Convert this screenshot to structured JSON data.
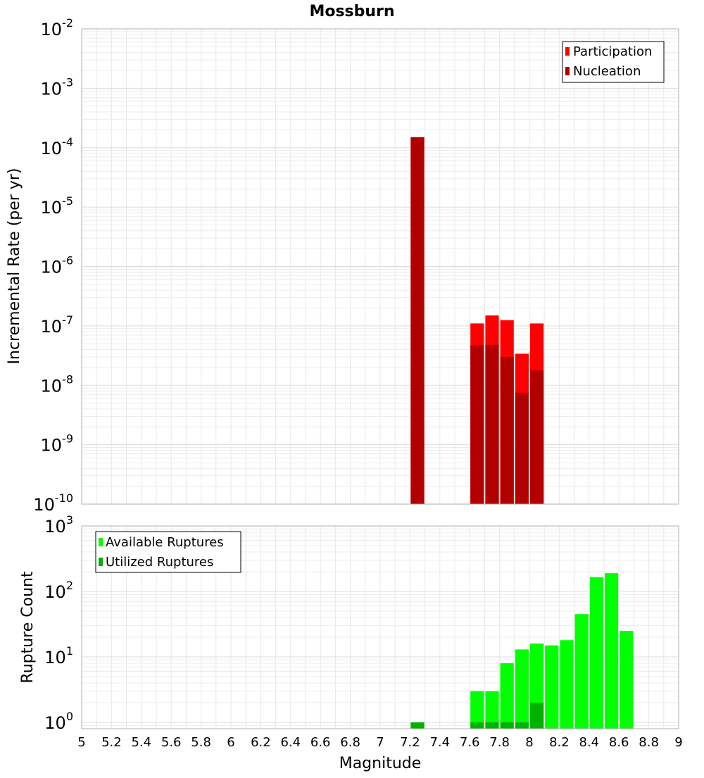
{
  "colors": {
    "participation": "#ff0000",
    "nucleation": "#b20000",
    "available": "#00ff00",
    "utilized": "#00b200"
  },
  "chart_data": [
    {
      "type": "bar",
      "title": "Mossburn",
      "xlabel": "",
      "ylabel": "Incremental Rate (per yr)",
      "xlim": [
        5,
        9
      ],
      "ylim": [
        1e-10,
        0.01
      ],
      "yscale": "log",
      "grid": true,
      "legend_placement": "top-right",
      "bin_width": 0.1,
      "y_ticks": [
        {
          "base": "10",
          "exp": "-10"
        },
        {
          "base": "10",
          "exp": "-9"
        },
        {
          "base": "10",
          "exp": "-8"
        },
        {
          "base": "10",
          "exp": "-7"
        },
        {
          "base": "10",
          "exp": "-6"
        },
        {
          "base": "10",
          "exp": "-5"
        },
        {
          "base": "10",
          "exp": "-4"
        },
        {
          "base": "10",
          "exp": "-3"
        },
        {
          "base": "10",
          "exp": "-2"
        }
      ],
      "series": [
        {
          "name": "Participation",
          "x": [
            7.25,
            7.65,
            7.75,
            7.85,
            7.95,
            8.05
          ],
          "values": [
            0.00015,
            1.1e-07,
            1.5e-07,
            1.25e-07,
            3.4e-08,
            1.1e-07
          ]
        },
        {
          "name": "Nucleation",
          "x": [
            7.25,
            7.65,
            7.75,
            7.85,
            7.95,
            8.05
          ],
          "values": [
            0.00015,
            4.7e-08,
            4.8e-08,
            3e-08,
            7.5e-09,
            1.8e-08
          ]
        }
      ]
    },
    {
      "type": "bar",
      "title": "",
      "xlabel": "Magnitude",
      "ylabel": "Rupture Count",
      "xlim": [
        5,
        9
      ],
      "ylim": [
        0.8,
        1000
      ],
      "yscale": "log",
      "grid": true,
      "legend_placement": "top-left",
      "bin_width": 0.1,
      "x_tick_labels": [
        "5",
        "5.2",
        "5.4",
        "5.6",
        "5.8",
        "6",
        "6.2",
        "6.4",
        "6.6",
        "6.8",
        "7",
        "7.2",
        "7.4",
        "7.6",
        "7.8",
        "8",
        "8.2",
        "8.4",
        "8.6",
        "8.8",
        "9"
      ],
      "y_ticks": [
        {
          "base": "10",
          "exp": "0"
        },
        {
          "base": "10",
          "exp": "1"
        },
        {
          "base": "10",
          "exp": "2"
        },
        {
          "base": "10",
          "exp": "3"
        }
      ],
      "series": [
        {
          "name": "Available Ruptures",
          "x": [
            7.25,
            7.65,
            7.75,
            7.85,
            7.95,
            8.05,
            8.15,
            8.25,
            8.35,
            8.45,
            8.55,
            8.65
          ],
          "values": [
            1,
            3,
            3,
            8,
            13,
            16,
            15,
            18,
            45,
            165,
            190,
            25
          ]
        },
        {
          "name": "Utilized Ruptures",
          "x": [
            7.25,
            7.65,
            7.75,
            7.85,
            7.95,
            8.05
          ],
          "values": [
            1,
            1,
            1,
            1,
            1,
            2
          ]
        }
      ]
    }
  ]
}
